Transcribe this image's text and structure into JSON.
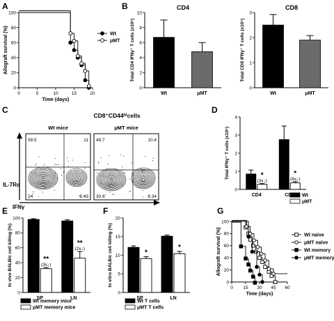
{
  "panels": {
    "A": {
      "label": "A"
    },
    "B": {
      "label": "B"
    },
    "C": {
      "label": "C"
    },
    "D": {
      "label": "D"
    },
    "E": {
      "label": "E"
    },
    "F": {
      "label": "F"
    },
    "G": {
      "label": "G"
    }
  },
  "chart_data": [
    {
      "id": "A",
      "type": "line",
      "step": true,
      "xlabel": "Time (days)",
      "ylabel": "Allograft survival (%)",
      "xlim": [
        0,
        20
      ],
      "ylim": [
        0,
        100
      ],
      "xticks": [
        "0",
        "5",
        "10",
        "15",
        "20"
      ],
      "yticks": [
        "0",
        "20",
        "40",
        "60",
        "80",
        "100"
      ],
      "legend_position": "right",
      "series": [
        {
          "name": "Wt",
          "marker": "filled-circle",
          "x": [
            0,
            14,
            15,
            16,
            17,
            18,
            19
          ],
          "y": [
            100,
            60,
            50,
            40,
            30,
            10,
            0
          ]
        },
        {
          "name": "μMT",
          "marker": "open-circle",
          "x": [
            0,
            14,
            15,
            16,
            17,
            18,
            19
          ],
          "y": [
            100,
            70,
            60,
            40,
            30,
            20,
            0
          ]
        }
      ]
    },
    {
      "id": "B1",
      "type": "bar",
      "title": "CD4",
      "ylabel": "Total CD4 IFNγ⁺ T cells (x10⁶)",
      "ylim": [
        0,
        10
      ],
      "yticks": [
        "0",
        "2",
        "4",
        "6",
        "8",
        "10"
      ],
      "categories": [
        "Wt",
        "μMT"
      ],
      "values": [
        6.7,
        4.8
      ],
      "errors": [
        2.3,
        1.2
      ],
      "bar_colors": [
        "#000000",
        "#6b6b6b"
      ]
    },
    {
      "id": "B2",
      "type": "bar",
      "title": "CD8",
      "ylabel": "Total CD8 IFNγ⁺ T cells (x10⁵)",
      "ylim": [
        0,
        3
      ],
      "yticks": [
        "0",
        "1",
        "2",
        "3"
      ],
      "categories": [
        "Wt",
        "μMT"
      ],
      "values": [
        2.5,
        1.9
      ],
      "errors": [
        0.42,
        0.18
      ],
      "bar_colors": [
        "#000000",
        "#6b6b6b"
      ]
    },
    {
      "id": "C",
      "type": "heatmap",
      "title": "CD8⁺CD44ʰⁱcells",
      "xlabel": "IFNγ",
      "ylabel": "IL-7Rα",
      "plots": [
        {
          "name": "Wt mice",
          "quadrants": {
            "tl": "58.5",
            "tr": "11",
            "bl": "24",
            "br": "6.43"
          }
        },
        {
          "name": "μMT mice",
          "quadrants": {
            "tl": "49.7",
            "tr": "10.4",
            "bl": "30.6",
            "br": "9.34"
          }
        }
      ]
    },
    {
      "id": "D",
      "type": "bar",
      "ylabel": "Total IFNγ⁺ T cells (x10⁶)",
      "ylim": [
        0,
        4
      ],
      "yticks": [
        "0",
        "1",
        "2",
        "3",
        "4"
      ],
      "categories": [
        "CD4",
        "CD8"
      ],
      "legend_position": "bottom-right",
      "series": [
        {
          "name": "Wt",
          "values": [
            0.85,
            2.75
          ],
          "errors": [
            0.22,
            0.75
          ],
          "color": "#000000"
        },
        {
          "name": "μMT",
          "values": [
            0.28,
            0.36
          ],
          "errors": [
            0.04,
            0.07
          ],
          "color": "#ffffff"
        }
      ],
      "annotations": [
        {
          "category": "CD4",
          "star": "*",
          "text": "(3x↓)"
        },
        {
          "category": "CD8",
          "star": "*",
          "text": "(8x↓)"
        }
      ]
    },
    {
      "id": "E",
      "type": "bar",
      "ylabel": "In vivo BALB/c cell killing (%)",
      "ylim": [
        0,
        100
      ],
      "yticks": [
        "0",
        "20",
        "40",
        "60",
        "80",
        "100"
      ],
      "categories": [
        "SP",
        "LN"
      ],
      "legend_position": "bottom",
      "series": [
        {
          "name": "Wt memory mice",
          "values": [
            98,
            96
          ],
          "errors": [
            1,
            1.5
          ],
          "color": "#000000"
        },
        {
          "name": "μMT memory mice",
          "values": [
            32,
            46
          ],
          "errors": [
            1.5,
            9
          ],
          "color": "#ffffff"
        }
      ],
      "annotations": [
        {
          "category": "SP",
          "star": "**",
          "text": "(3x↓)"
        },
        {
          "category": "LN",
          "star": "**",
          "text": "(2x↓)"
        }
      ]
    },
    {
      "id": "F",
      "type": "bar",
      "ylabel": "In vitro BALB/c cell killing (%)",
      "ylim": [
        0,
        20
      ],
      "yticks": [
        "0",
        "5",
        "10",
        "15",
        "20"
      ],
      "categories": [
        "SP",
        "LN"
      ],
      "legend_position": "bottom",
      "series": [
        {
          "name": "Wt T cells",
          "values": [
            12.1,
            15.1
          ],
          "errors": [
            0.4,
            0.3
          ],
          "color": "#000000"
        },
        {
          "name": "μMT T cells",
          "values": [
            9.1,
            10.4
          ],
          "errors": [
            0.5,
            0.6
          ],
          "color": "#ffffff"
        }
      ],
      "annotations": [
        {
          "category": "SP",
          "star": "*",
          "text": ""
        },
        {
          "category": "LN",
          "star": "*",
          "text": ""
        }
      ]
    },
    {
      "id": "G",
      "type": "line",
      "step": true,
      "xlabel": "Time (days)",
      "ylabel": "Allograft survival (%)",
      "xlim": [
        0,
        60
      ],
      "ylim": [
        0,
        100
      ],
      "xticks": [
        "0",
        "15",
        "30",
        "45",
        "60"
      ],
      "yticks": [
        "0",
        "20",
        "40",
        "60",
        "80",
        "100"
      ],
      "legend_position": "right",
      "series": [
        {
          "name": "Wt naive",
          "marker": "open-square",
          "x": [
            0,
            15,
            18,
            20,
            23,
            26,
            30,
            33,
            36,
            40,
            43,
            47
          ],
          "y": [
            100,
            90,
            80,
            70,
            60,
            50,
            40,
            33,
            25,
            17,
            10,
            0
          ]
        },
        {
          "name": "μMT naive",
          "marker": "open-circle",
          "x": [
            0,
            16,
            20,
            24,
            28,
            32,
            36,
            40,
            45
          ],
          "y": [
            100,
            90,
            78,
            67,
            56,
            45,
            34,
            20,
            12
          ]
        },
        {
          "name": "Wt memory",
          "marker": "filled-square",
          "x": [
            0,
            10,
            15,
            18,
            20,
            23,
            25
          ],
          "y": [
            100,
            60,
            40,
            30,
            20,
            10,
            0
          ]
        },
        {
          "name": "μMT memory",
          "marker": "filled-circle",
          "x": [
            0,
            18,
            22,
            27,
            30,
            33
          ],
          "y": [
            100,
            75,
            50,
            25,
            12,
            0
          ]
        }
      ]
    }
  ]
}
